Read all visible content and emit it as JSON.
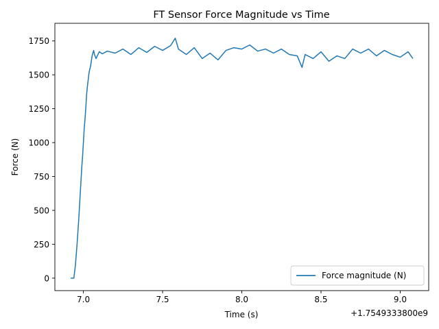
{
  "chart_data": {
    "type": "line",
    "title": "FT Sensor Force Magnitude vs Time",
    "xlabel": "Time (s)",
    "ylabel": "Force (N)",
    "x_offset_label": "+1.7549333800e9",
    "xlim": [
      6.82,
      9.18
    ],
    "ylim": [
      -92,
      1880
    ],
    "x_ticks": [
      7.0,
      7.5,
      8.0,
      8.5,
      9.0
    ],
    "x_tick_labels": [
      "7.0",
      "7.5",
      "8.0",
      "8.5",
      "9.0"
    ],
    "y_ticks": [
      0,
      250,
      500,
      750,
      1000,
      1250,
      1500,
      1750
    ],
    "y_tick_labels": [
      "0",
      "250",
      "500",
      "750",
      "1000",
      "1250",
      "1500",
      "1750"
    ],
    "grid": false,
    "legend_position": "lower-right",
    "series": [
      {
        "name": "Force magnitude (N)",
        "color": "#1f77b4",
        "x": [
          6.92,
          6.94,
          6.95,
          6.96,
          6.97,
          6.975,
          6.98,
          6.985,
          6.99,
          6.995,
          7.0,
          7.005,
          7.01,
          7.015,
          7.02,
          7.025,
          7.03,
          7.035,
          7.04,
          7.045,
          7.05,
          7.055,
          7.06,
          7.065,
          7.07,
          7.08,
          7.1,
          7.12,
          7.15,
          7.2,
          7.25,
          7.3,
          7.35,
          7.4,
          7.45,
          7.5,
          7.55,
          7.58,
          7.6,
          7.65,
          7.7,
          7.75,
          7.8,
          7.85,
          7.9,
          7.95,
          8.0,
          8.05,
          8.1,
          8.15,
          8.2,
          8.25,
          8.3,
          8.35,
          8.38,
          8.4,
          8.45,
          8.5,
          8.55,
          8.6,
          8.65,
          8.7,
          8.75,
          8.8,
          8.85,
          8.9,
          8.95,
          9.0,
          9.05,
          9.08
        ],
        "values": [
          0,
          0,
          100,
          250,
          420,
          520,
          620,
          720,
          820,
          900,
          1000,
          1100,
          1170,
          1250,
          1350,
          1410,
          1460,
          1510,
          1540,
          1560,
          1600,
          1640,
          1660,
          1680,
          1650,
          1620,
          1670,
          1655,
          1675,
          1660,
          1690,
          1650,
          1700,
          1665,
          1710,
          1680,
          1715,
          1770,
          1690,
          1650,
          1700,
          1620,
          1660,
          1610,
          1680,
          1700,
          1690,
          1720,
          1675,
          1690,
          1660,
          1690,
          1650,
          1640,
          1555,
          1650,
          1620,
          1670,
          1600,
          1640,
          1620,
          1690,
          1660,
          1690,
          1640,
          1680,
          1650,
          1630,
          1670,
          1620
        ]
      }
    ]
  }
}
